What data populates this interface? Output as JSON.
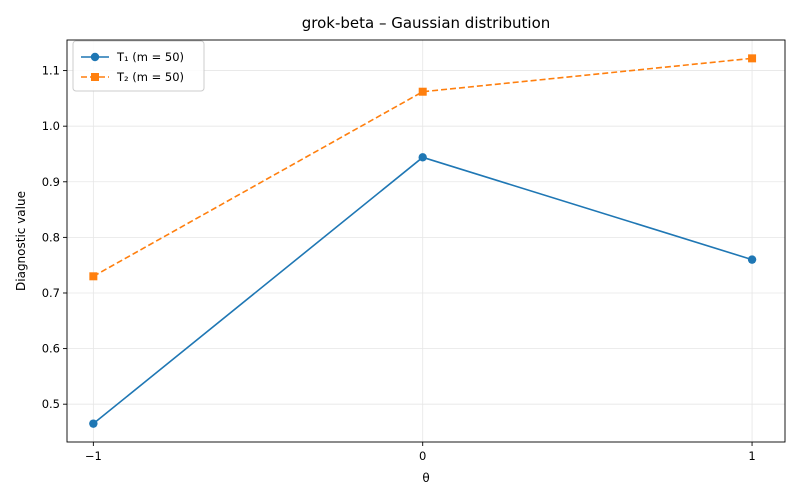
{
  "chart_data": {
    "type": "line",
    "title": "grok-beta – Gaussian distribution",
    "xlabel": "θ",
    "ylabel": "Diagnostic value",
    "x": [
      -1,
      0,
      1
    ],
    "x_tick_labels": [
      "−1",
      "0",
      "1"
    ],
    "xlim": [
      -1.08,
      1.1
    ],
    "ylim": [
      0.432,
      1.155
    ],
    "y_ticks": [
      0.5,
      0.6,
      0.7,
      0.8,
      0.9,
      1.0,
      1.1
    ],
    "y_tick_labels": [
      "0.5",
      "0.6",
      "0.7",
      "0.8",
      "0.9",
      "1.0",
      "1.1"
    ],
    "grid": true,
    "legend_position": "top-left",
    "series": [
      {
        "name": "T₁ (m = 50)",
        "values": [
          0.465,
          0.944,
          0.76
        ],
        "color": "#1f77b4",
        "line_style": "solid",
        "marker": "circle"
      },
      {
        "name": "T₂ (m = 50)",
        "values": [
          0.73,
          1.062,
          1.122
        ],
        "color": "#ff7f0e",
        "line_style": "dashed",
        "marker": "square"
      }
    ]
  }
}
